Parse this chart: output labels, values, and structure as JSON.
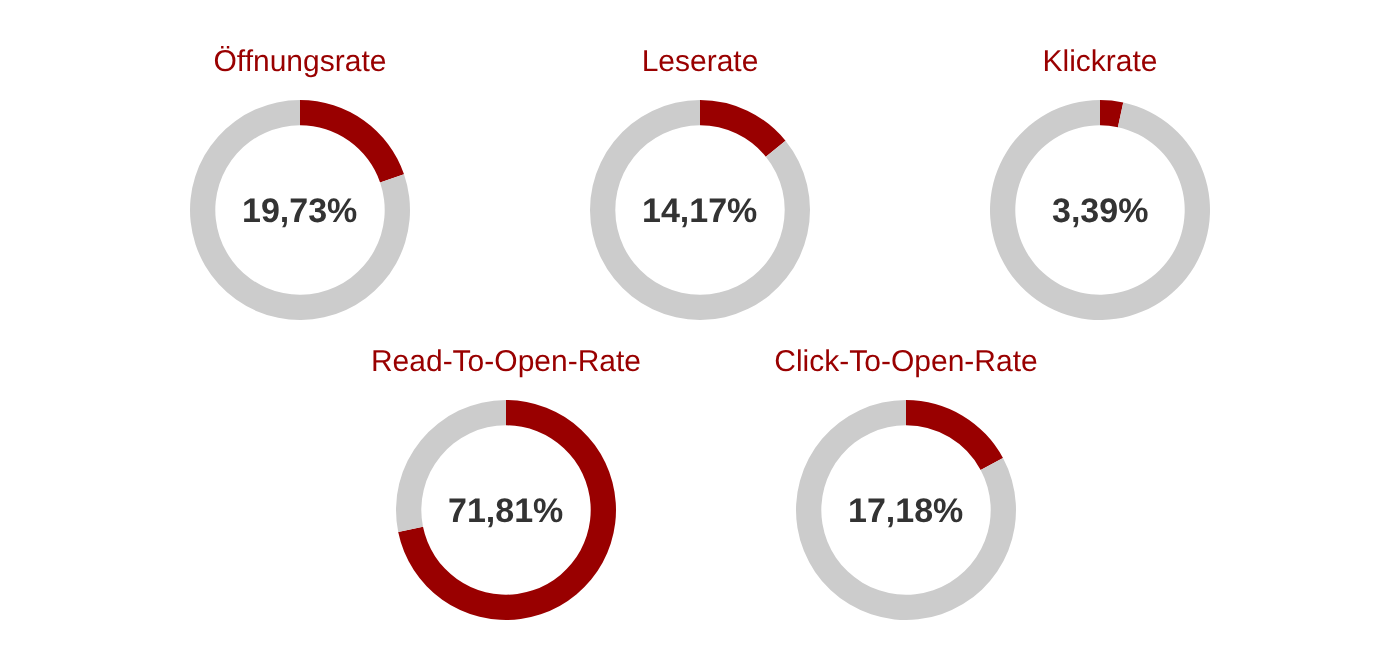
{
  "chart_data": [
    {
      "type": "donut",
      "title": "Öffnungsrate",
      "categories": [
        null,
        null
      ],
      "values": [
        19.73,
        80.27
      ],
      "colors": [
        "#990000",
        "#cccccc"
      ],
      "annotations": [
        "19,73%"
      ]
    },
    {
      "type": "donut",
      "title": "Leserate",
      "categories": [
        null,
        null
      ],
      "values": [
        14.17,
        85.83
      ],
      "colors": [
        "#990000",
        "#cccccc"
      ],
      "annotations": [
        "14,17%"
      ]
    },
    {
      "type": "donut",
      "title": "Klickrate",
      "categories": [
        null,
        null
      ],
      "values": [
        3.39,
        96.61
      ],
      "colors": [
        "#990000",
        "#cccccc"
      ],
      "annotations": [
        "3,39%"
      ]
    },
    {
      "type": "donut",
      "title": "Read-To-Open-Rate",
      "categories": [
        null,
        null
      ],
      "values": [
        71.81,
        28.19
      ],
      "colors": [
        "#990000",
        "#cccccc"
      ],
      "annotations": [
        "71,81%"
      ]
    },
    {
      "type": "donut",
      "title": "Click-To-Open-Rate",
      "categories": [
        null,
        null
      ],
      "values": [
        17.18,
        82.82
      ],
      "colors": [
        "#990000",
        "#cccccc"
      ],
      "annotations": [
        "17,18%"
      ]
    }
  ]
}
